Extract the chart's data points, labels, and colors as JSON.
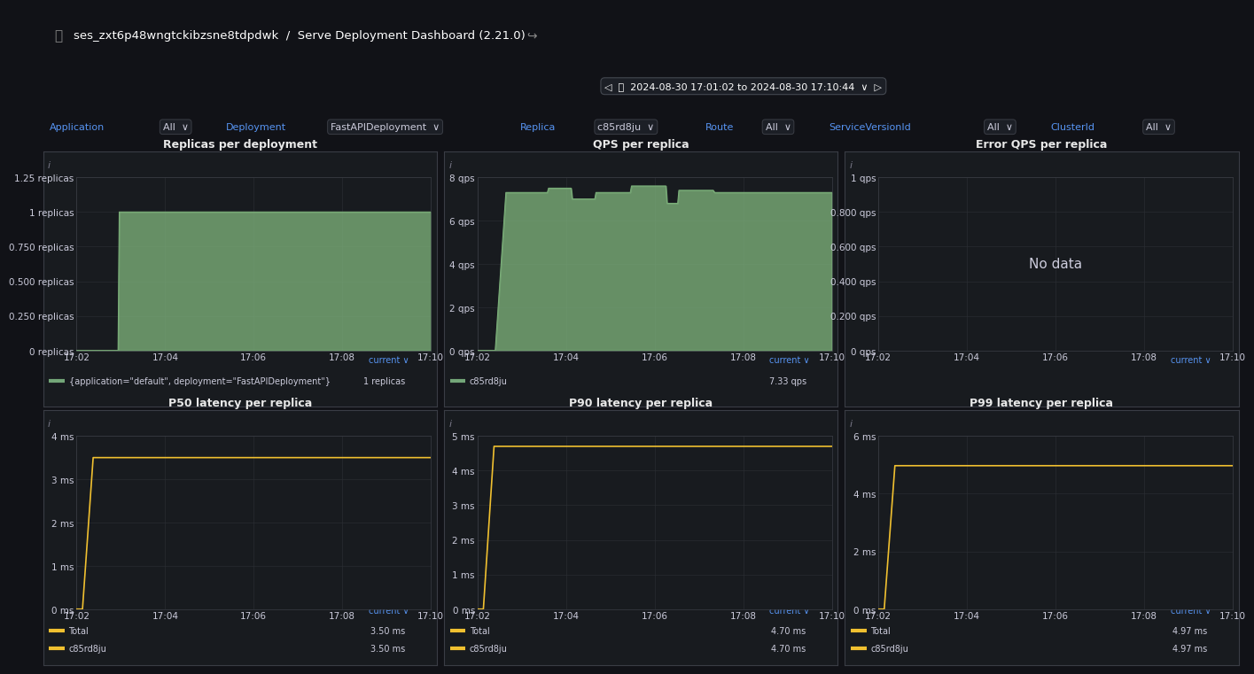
{
  "bg_color": "#111217",
  "panel_bg": "#181b1f",
  "panel_border": "#3a3d45",
  "text_color": "#ccccdc",
  "title_color": "#e8e8e8",
  "blue_text": "#5794f2",
  "grid_color": "#2c2f35",
  "header_title": "ses_zxt6p48wngtckibzsne8tdpdwk  /  Serve Deployment Dashboard (2.21.0)",
  "time_range": "2024-08-30 17:01:02 to 2024-08-30 17:10:44",
  "x_ticks": [
    "17:02",
    "17:04",
    "17:06",
    "17:08",
    "17:10"
  ],
  "panel1_title": "Replicas per deployment",
  "panel1_yticks": [
    "0 replicas",
    "0.250 replicas",
    "0.500 replicas",
    "0.750 replicas",
    "1 replicas",
    "1.25 replicas"
  ],
  "panel1_yvals": [
    0,
    0.25,
    0.5,
    0.75,
    1.0,
    1.25
  ],
  "panel1_ylim": [
    0,
    1.25
  ],
  "panel1_series_color": "#7aad78",
  "panel1_legend_label": "{application=\"default\", deployment=\"FastAPIDeployment\"}",
  "panel1_legend_value": "1 replicas",
  "panel1_legend_color": "#73a678",
  "panel2_title": "QPS per replica",
  "panel2_yticks": [
    "0 qps",
    "2 qps",
    "4 qps",
    "6 qps",
    "8 qps"
  ],
  "panel2_yvals": [
    0,
    2,
    4,
    6,
    8
  ],
  "panel2_ylim": [
    0,
    8
  ],
  "panel2_series_color": "#7aad78",
  "panel2_legend_label": "c85rd8ju",
  "panel2_legend_value": "7.33 qps",
  "panel2_legend_color": "#73a678",
  "panel3_title": "Error QPS per replica",
  "panel3_yticks": [
    "0 qps",
    "0.200 qps",
    "0.400 qps",
    "0.600 qps",
    "0.800 qps",
    "1 qps"
  ],
  "panel3_yvals": [
    0,
    0.2,
    0.4,
    0.6,
    0.8,
    1.0
  ],
  "panel3_ylim": [
    0,
    1.0
  ],
  "panel3_nodata": "No data",
  "panel4_title": "P50 latency per replica",
  "panel4_yticks": [
    "0 ms",
    "1 ms",
    "2 ms",
    "3 ms",
    "4 ms"
  ],
  "panel4_yvals": [
    0,
    1,
    2,
    3,
    4
  ],
  "panel4_ylim": [
    0,
    4
  ],
  "panel4_total_color": "#f0c030",
  "panel4_c85_color": "#f0c030",
  "panel4_legend_total": "Total",
  "panel4_legend_total_val": "3.50 ms",
  "panel4_legend_c85": "c85rd8ju",
  "panel4_legend_c85_val": "3.50 ms",
  "panel5_title": "P90 latency per replica",
  "panel5_yticks": [
    "0 ms",
    "1 ms",
    "2 ms",
    "3 ms",
    "4 ms",
    "5 ms"
  ],
  "panel5_yvals": [
    0,
    1,
    2,
    3,
    4,
    5
  ],
  "panel5_ylim": [
    0,
    5
  ],
  "panel5_total_color": "#f0c030",
  "panel5_c85_color": "#f0c030",
  "panel5_legend_total": "Total",
  "panel5_legend_total_val": "4.70 ms",
  "panel5_legend_c85": "c85rd8ju",
  "panel5_legend_c85_val": "4.70 ms",
  "panel6_title": "P99 latency per replica",
  "panel6_yticks": [
    "0 ms",
    "2 ms",
    "4 ms",
    "6 ms"
  ],
  "panel6_yvals": [
    0,
    2,
    4,
    6
  ],
  "panel6_ylim": [
    0,
    6
  ],
  "panel6_total_color": "#f0c030",
  "panel6_c85_color": "#f0c030",
  "panel6_legend_total": "Total",
  "panel6_legend_total_val": "4.97 ms",
  "panel6_legend_c85": "c85rd8ju",
  "panel6_legend_c85_val": "4.97 ms",
  "current_color": "#5794f2",
  "info_color": "#7a7a8a",
  "legend_line_color_green": "#73a678"
}
